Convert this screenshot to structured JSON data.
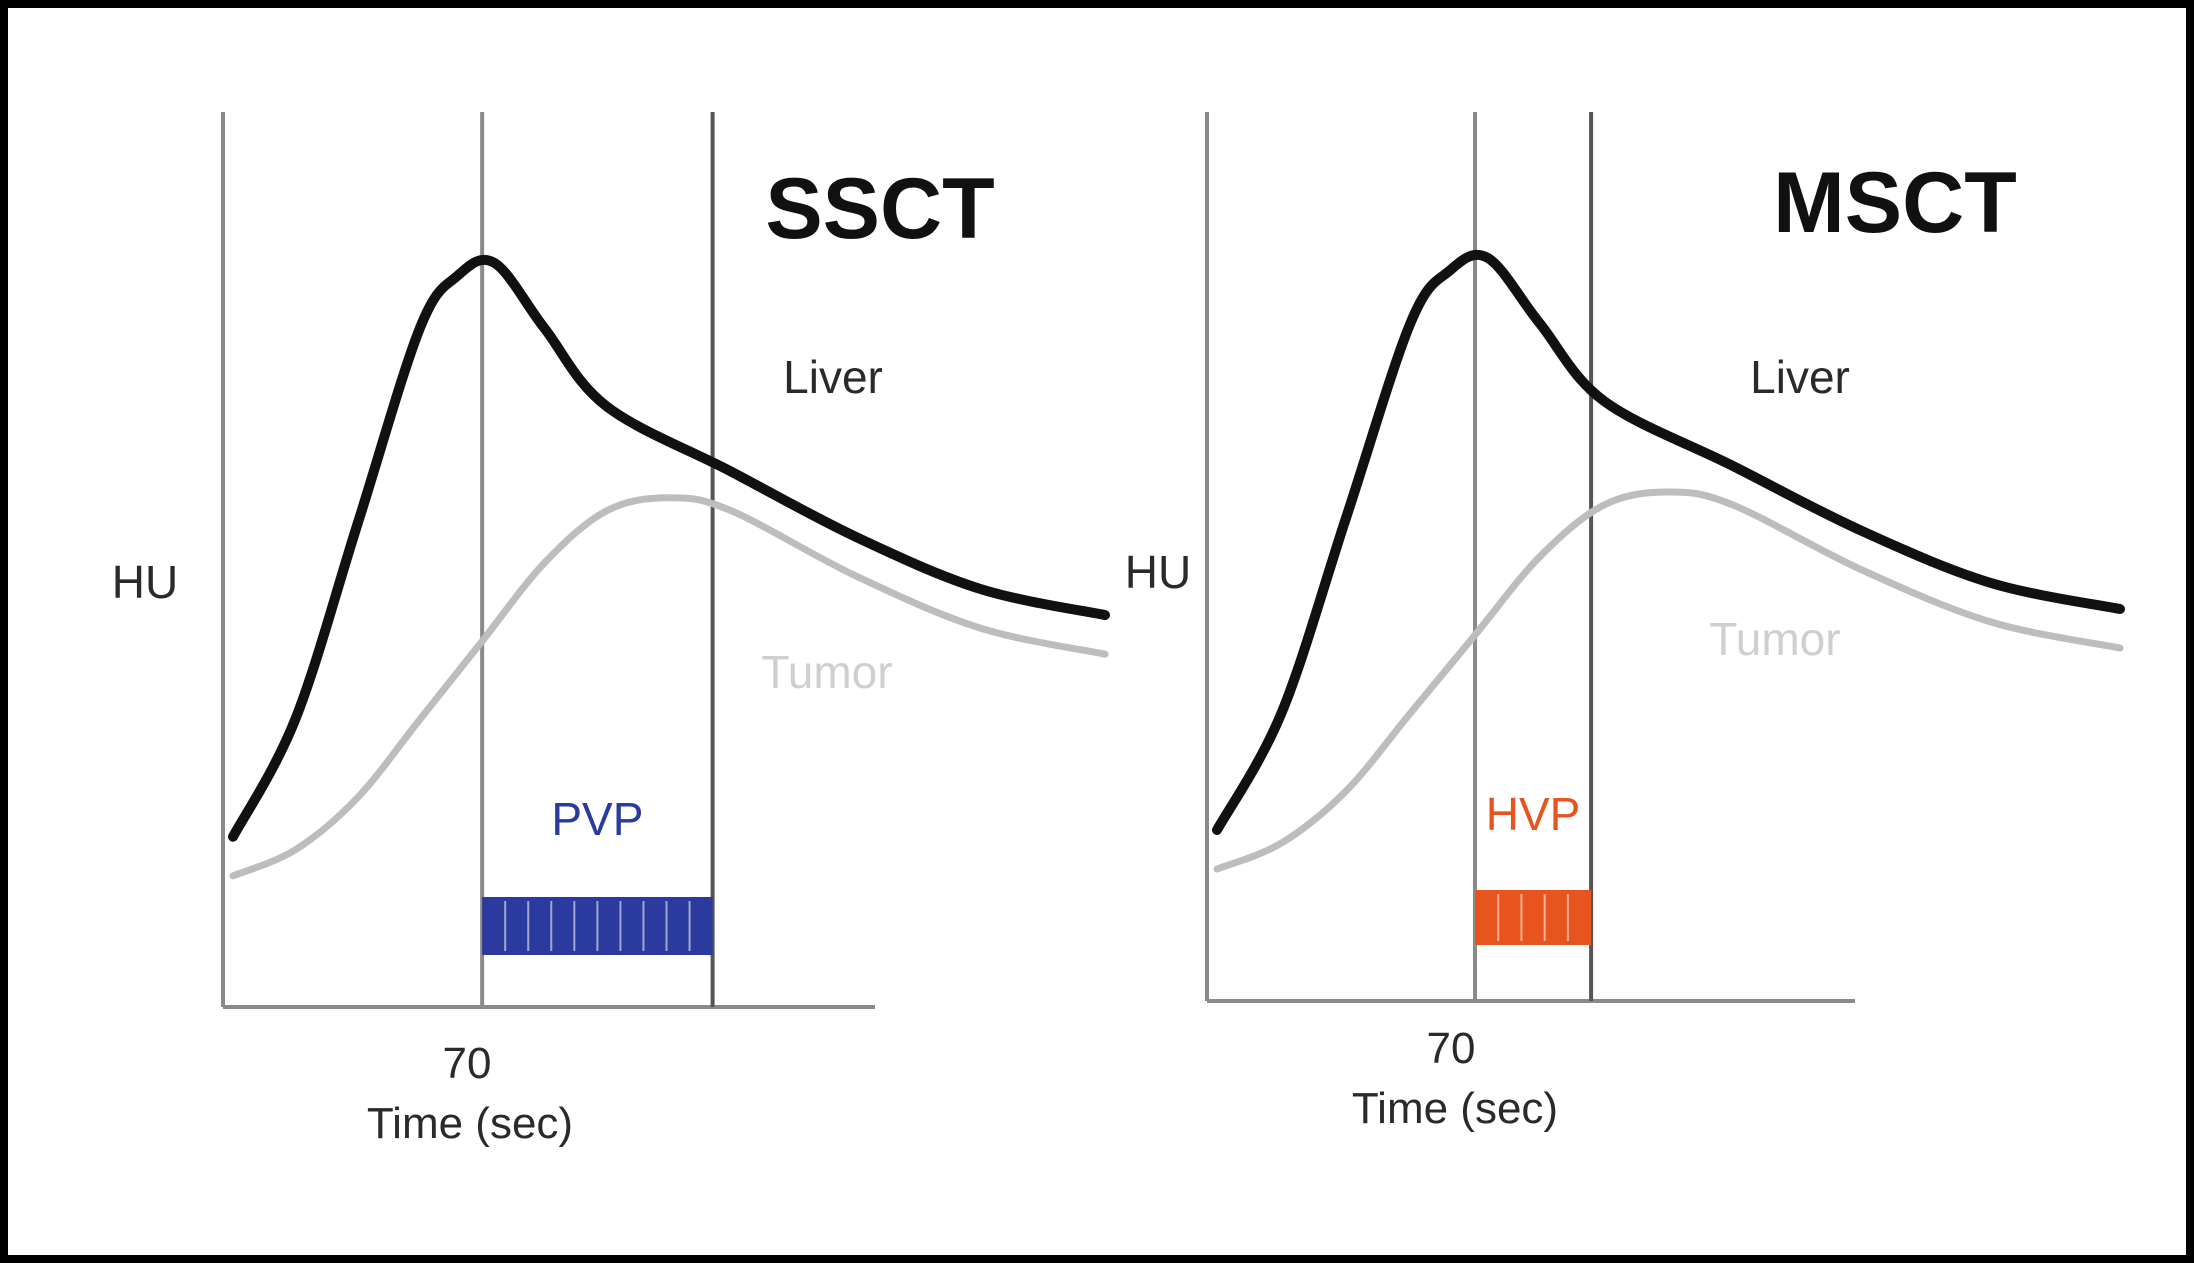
{
  "chart_data": [
    {
      "type": "line",
      "title": "SSCT",
      "xlabel": "Time (sec)",
      "ylabel": "HU",
      "x_ticks": [
        70
      ],
      "grid": false,
      "series": [
        {
          "name": "Liver",
          "color": "#111111",
          "x": [
            30,
            40,
            50,
            60,
            66,
            72,
            80,
            90,
            110,
            130,
            150,
            170
          ],
          "y": [
            12,
            30,
            60,
            90,
            98,
            100,
            90,
            78,
            68,
            58,
            50,
            46
          ]
        },
        {
          "name": "Tumor",
          "color": "#bdbdbd",
          "x": [
            30,
            40,
            50,
            60,
            70,
            80,
            90,
            100,
            110,
            130,
            150,
            170
          ],
          "y": [
            6,
            10,
            18,
            30,
            42,
            54,
            62,
            64,
            62,
            52,
            44,
            40
          ]
        }
      ],
      "phase_window": {
        "label": "PVP",
        "start": 70,
        "end": 107,
        "color": "#2b3a9e"
      }
    },
    {
      "type": "line",
      "title": "MSCT",
      "xlabel": "Time (sec)",
      "ylabel": "HU",
      "x_ticks": [
        70
      ],
      "grid": false,
      "series": [
        {
          "name": "Liver",
          "color": "#111111",
          "x": [
            30,
            40,
            50,
            60,
            66,
            72,
            80,
            90,
            110,
            130,
            150,
            170
          ],
          "y": [
            12,
            30,
            60,
            90,
            98,
            100,
            90,
            78,
            68,
            58,
            50,
            46
          ]
        },
        {
          "name": "Tumor",
          "color": "#bdbdbd",
          "x": [
            30,
            40,
            50,
            60,
            70,
            80,
            90,
            100,
            110,
            130,
            150,
            170
          ],
          "y": [
            6,
            10,
            18,
            30,
            42,
            54,
            62,
            64,
            62,
            52,
            44,
            40
          ]
        }
      ],
      "phase_window": {
        "label": "HVP",
        "start": 70,
        "end": 88,
        "color": "#e8541e"
      }
    }
  ]
}
